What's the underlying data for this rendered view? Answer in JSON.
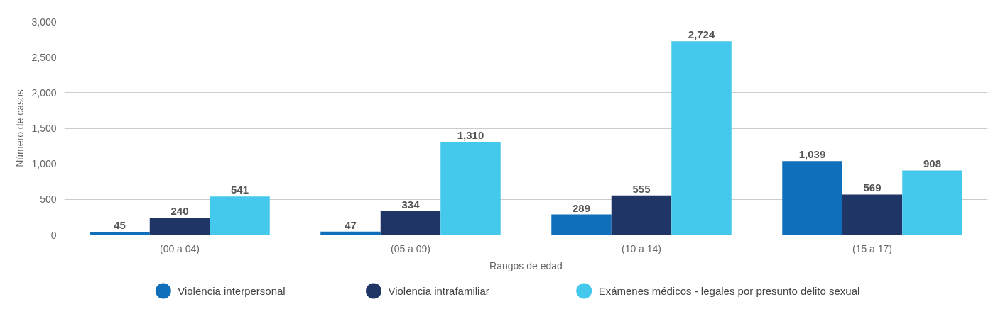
{
  "chart_data": {
    "type": "bar",
    "xlabel": "Rangos de edad",
    "ylabel": "Número de casos",
    "categories": [
      "(00 a 04)",
      "(05 a 09)",
      "(10 a 14)",
      "(15 a 17)"
    ],
    "series": [
      {
        "name": "Violencia interpersonal",
        "color": "#0f6fba",
        "values": [
          45,
          47,
          289,
          1039
        ],
        "value_labels": [
          "45",
          "47",
          "289",
          "1,039"
        ]
      },
      {
        "name": "Violencia intrafamiliar",
        "color": "#1f3566",
        "values": [
          240,
          334,
          555,
          569
        ],
        "value_labels": [
          "240",
          "334",
          "555",
          "569"
        ]
      },
      {
        "name": "Exámenes médicos - legales por presunto delito sexual",
        "color": "#44c8ec",
        "values": [
          541,
          1310,
          2724,
          908
        ],
        "value_labels": [
          "541",
          "1,310",
          "2,724",
          "908"
        ]
      }
    ],
    "ylim": [
      0,
      3000
    ],
    "yticks": [
      {
        "value": 0,
        "label": "0"
      },
      {
        "value": 500,
        "label": "500"
      },
      {
        "value": 1000,
        "label": "1,000"
      },
      {
        "value": 1500,
        "label": "1,500"
      },
      {
        "value": 2000,
        "label": "2,000"
      },
      {
        "value": 2500,
        "label": "2,500"
      },
      {
        "value": 3000,
        "label": "3,000"
      }
    ],
    "grid": "y",
    "legend": "bottom"
  }
}
